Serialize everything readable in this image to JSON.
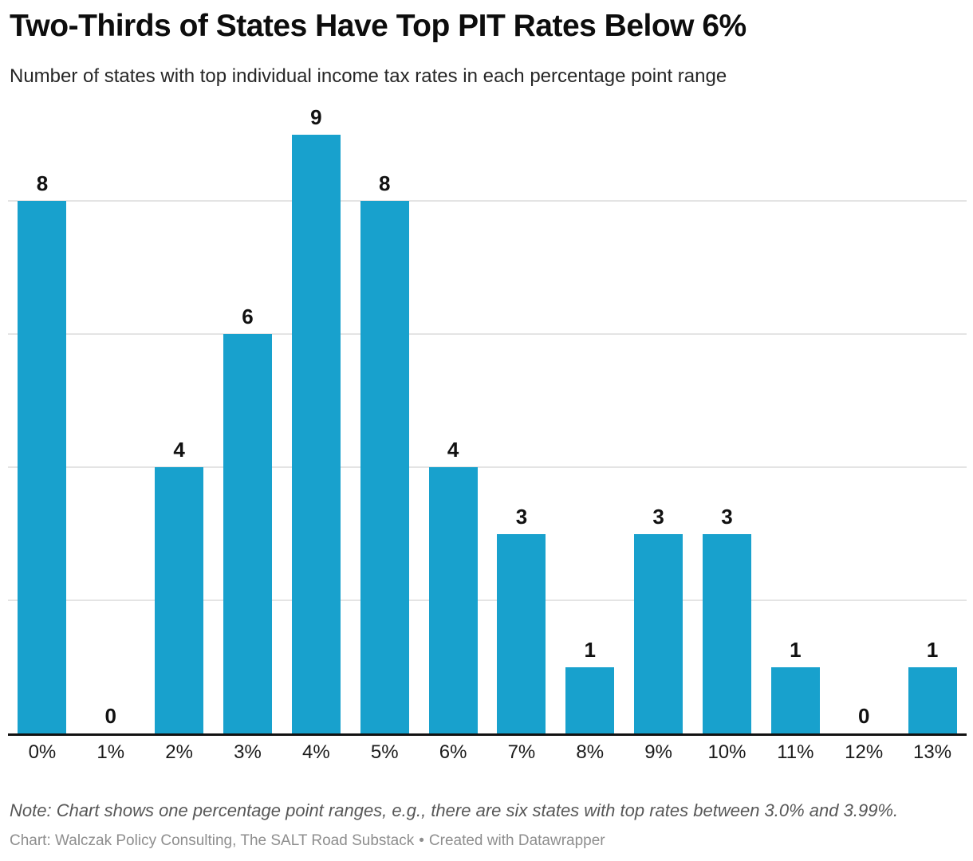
{
  "chart_data": {
    "type": "bar",
    "title": "Two-Thirds of States Have Top PIT Rates Below 6%",
    "subtitle": "Number of states with top individual income tax rates in each percentage point range",
    "categories": [
      "0%",
      "1%",
      "2%",
      "3%",
      "4%",
      "5%",
      "6%",
      "7%",
      "8%",
      "9%",
      "10%",
      "11%",
      "12%",
      "13%"
    ],
    "values": [
      8,
      0,
      4,
      6,
      9,
      8,
      4,
      3,
      1,
      3,
      3,
      1,
      0,
      1
    ],
    "xlabel": "",
    "ylabel": "",
    "ylim": [
      0,
      9
    ],
    "gridlines": [
      2,
      4,
      6,
      8
    ],
    "grid": "horizontal-only",
    "legend": "none",
    "value_labels": true,
    "bar_color": "#18a1cd",
    "gridline_color": "#e4e4e4",
    "axis_color": "#121212"
  },
  "footer": {
    "note": "Note: Chart shows one percentage point ranges, e.g., there are six states with top rates between 3.0% and 3.99%.",
    "credit": "Chart: Walczak Policy Consulting, The SALT Road Substack",
    "separator": "•",
    "credit_link": "Created with Datawrapper"
  }
}
